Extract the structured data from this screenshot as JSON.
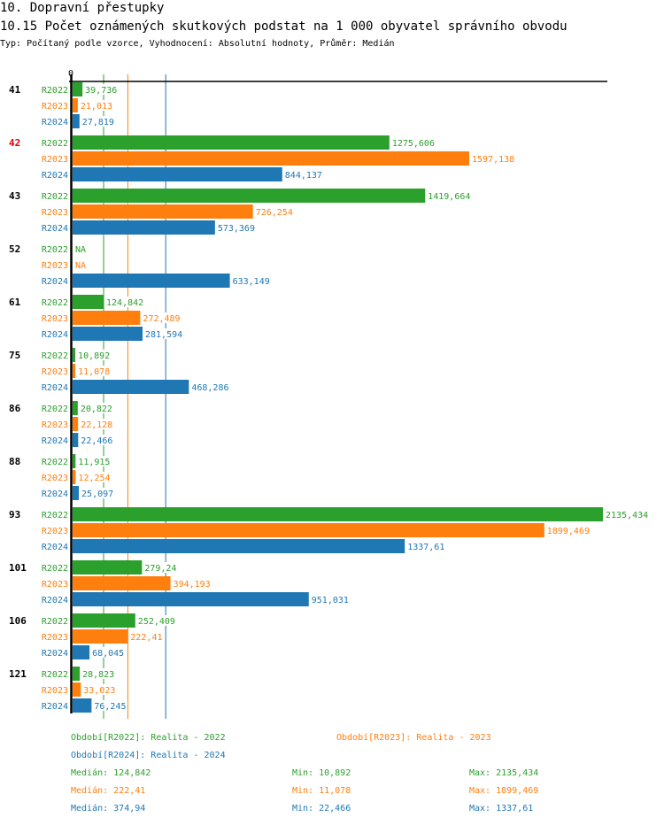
{
  "header": {
    "section_title": "10. Dopravní přestupky",
    "indicator_title": "10.15 Počet oznámených skutkových podstat na 1 000 obyvatel správního obvodu",
    "subtitle": "Typ: Počítaný podle vzorce, Vyhodnocení: Absolutní hodnoty, Průměr: Medián"
  },
  "colors": {
    "R2022": "#2ca02c",
    "R2023": "#ff7f0e",
    "R2024": "#1f77b4",
    "highlight_group": "#e00000",
    "axis": "#000000"
  },
  "chart_data": {
    "type": "bar",
    "orientation": "horizontal",
    "title": "10.15 Počet oznámených skutkových podstat na 1 000 obyvatel správního obvodu",
    "xlabel": "",
    "ylabel": "",
    "x_tick_labels": [
      "0"
    ],
    "xlim": [
      0,
      2135.434
    ],
    "grid": false,
    "highlighted_category": "42",
    "categories": [
      "41",
      "42",
      "43",
      "52",
      "61",
      "75",
      "86",
      "88",
      "93",
      "101",
      "106",
      "121"
    ],
    "series": [
      {
        "name": "R2022",
        "values": [
          39.736,
          1275.606,
          1419.664,
          null,
          124.842,
          10.892,
          20.822,
          11.915,
          2135.434,
          279.24,
          252.409,
          28.823
        ],
        "labels": [
          "39,736",
          "1275,606",
          "1419,664",
          "NA",
          "124,842",
          "10,892",
          "20,822",
          "11,915",
          "2135,434",
          "279,24",
          "252,409",
          "28,823"
        ]
      },
      {
        "name": "R2023",
        "values": [
          21.013,
          1597.138,
          726.254,
          null,
          272.489,
          11.078,
          22.128,
          12.254,
          1899.469,
          394.193,
          222.41,
          33.023
        ],
        "labels": [
          "21,013",
          "1597,138",
          "726,254",
          "NA",
          "272,489",
          "11,078",
          "22,128",
          "12,254",
          "1899,469",
          "394,193",
          "222,41",
          "33,023"
        ]
      },
      {
        "name": "R2024",
        "values": [
          27.819,
          844.137,
          573.369,
          633.149,
          281.594,
          468.286,
          22.466,
          25.097,
          1337.61,
          951.031,
          68.045,
          76.245
        ],
        "labels": [
          "27,819",
          "844,137",
          "573,369",
          "633,149",
          "281,594",
          "468,286",
          "22,466",
          "25,097",
          "1337,61",
          "951,031",
          "68,045",
          "76,245"
        ]
      }
    ],
    "reference_lines": [
      {
        "series": "R2022",
        "type": "median",
        "value": 124.842
      },
      {
        "series": "R2023",
        "type": "median",
        "value": 222.41
      },
      {
        "series": "R2024",
        "type": "median",
        "value": 374.94
      }
    ],
    "legend": {
      "placement": "bottom",
      "entries": [
        "Období[R2022]: Realita - 2022",
        "Období[R2023]: Realita - 2023",
        "Období[R2024]: Realita - 2024"
      ]
    },
    "stats": [
      {
        "series": "R2022",
        "median": "Medián: 124,842",
        "min": "Min: 10,892",
        "max": "Max: 2135,434"
      },
      {
        "series": "R2023",
        "median": "Medián: 222,41",
        "min": "Min: 11,078",
        "max": "Max: 1899,469"
      },
      {
        "series": "R2024",
        "median": "Medián: 374,94",
        "min": "Min: 22,466",
        "max": "Max: 1337,61"
      }
    ]
  }
}
